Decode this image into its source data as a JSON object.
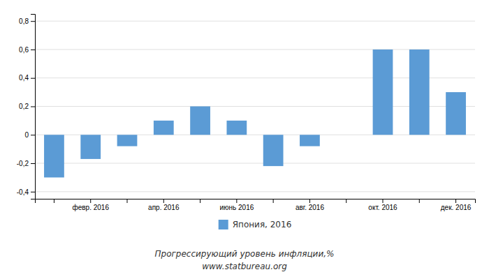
{
  "chart_data": {
    "type": "bar",
    "categories": [
      null,
      "февр. 2016",
      null,
      "апр. 2016",
      null,
      "июнь 2016",
      null,
      "авг. 2016",
      null,
      "окт. 2016",
      null,
      "дек. 2016"
    ],
    "series": [
      {
        "name": "Япония, 2016",
        "color": "#5b9bd5",
        "values": [
          -0.3,
          -0.17,
          -0.08,
          0.1,
          0.2,
          0.1,
          -0.22,
          -0.08,
          0.0,
          0.6,
          0.6,
          0.3
        ]
      }
    ],
    "ylim": [
      -0.45,
      0.85
    ],
    "yticks": [
      {
        "value": -0.4,
        "label": "-0,4"
      },
      {
        "value": -0.2,
        "label": "-0,2"
      },
      0,
      {
        "value": 0.2,
        "label": "0,2"
      },
      {
        "value": 0.4,
        "label": "0,4"
      },
      {
        "value": 0.6,
        "label": "0,6"
      },
      {
        "value": 0.8,
        "label": "0,8"
      }
    ],
    "grid": true,
    "legend": "bottom",
    "annotations": [
      "Прогрессирующий уровень инфляции,%",
      "www.statbureau.org"
    ]
  }
}
